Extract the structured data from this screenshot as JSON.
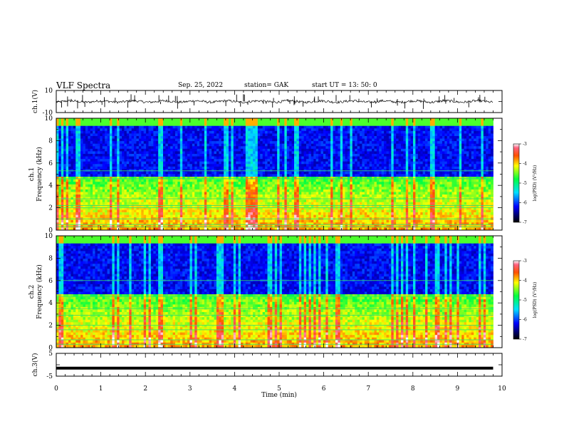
{
  "header": {
    "title": "VLF Spectra",
    "date": "Sep. 25, 2022",
    "station": "station= GAK",
    "start": "start UT = 13: 50: 0"
  },
  "chart_data": [
    {
      "type": "line",
      "name": "ch1-waveform-panel",
      "ylabel": "ch.1(V)",
      "ylim": [
        -10,
        10
      ],
      "yticks": [
        "10",
        "-10"
      ],
      "xlim": [
        0,
        10
      ],
      "baseline": 0,
      "spikes": true
    },
    {
      "type": "heatmap",
      "name": "ch1-spectrogram",
      "ylabel": "ch.1\nFrequency (kHz)",
      "ylabel_line1": "ch.1",
      "ylabel_line2": "Frequency (kHz)",
      "ylim": [
        0,
        10
      ],
      "yticks": [
        "0",
        "2",
        "4",
        "6",
        "8",
        "10"
      ],
      "xlim": [
        0,
        10
      ],
      "data_end_min": 9.8,
      "colorbar": {
        "label": "log(PSD) (V²/Hz)",
        "range": [
          -7,
          -3
        ],
        "ticks": [
          "-3",
          "-4",
          "-5",
          "-6",
          "-7"
        ]
      }
    },
    {
      "type": "heatmap",
      "name": "ch2-spectrogram",
      "ylabel": "ch.2\nFrequency (kHz)",
      "ylabel_line1": "ch.2",
      "ylabel_line2": "Frequency (kHz)",
      "ylim": [
        0,
        10
      ],
      "yticks": [
        "0",
        "2",
        "4",
        "6",
        "8",
        "10"
      ],
      "xlim": [
        0,
        10
      ],
      "data_end_min": 9.8,
      "colorbar": {
        "label": "log(PSD) (V²/Hz)",
        "range": [
          -7,
          -3
        ],
        "ticks": [
          "-3",
          "-4",
          "-5",
          "-6",
          "-7"
        ]
      }
    },
    {
      "type": "line",
      "name": "ch3-panel",
      "ylabel": "ch.3(V)",
      "ylim": [
        -5,
        5
      ],
      "yticks": [
        "5",
        "0",
        "-5"
      ],
      "xlim": [
        0,
        10
      ],
      "level": -1.5,
      "xlabel": "Time (min)",
      "xticks": [
        "0",
        "1",
        "2",
        "3",
        "4",
        "5",
        "6",
        "7",
        "8",
        "9",
        "10"
      ]
    }
  ]
}
